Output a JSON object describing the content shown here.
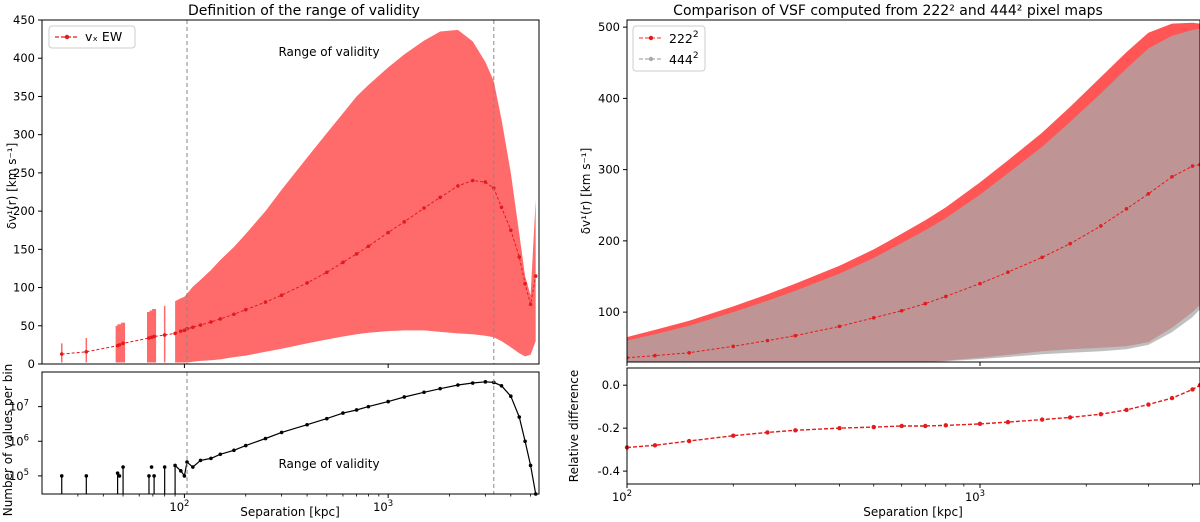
{
  "chart_data": [
    {
      "type": "line",
      "title": "Definition of the range of validity",
      "xscale": "log",
      "xlim": [
        20,
        5500
      ],
      "ylim": [
        0,
        450
      ],
      "yticks": [
        0,
        50,
        100,
        150,
        200,
        250,
        300,
        350,
        400,
        450
      ],
      "xticks": [
        {
          "value": 100,
          "label": "10",
          "exp": "2"
        },
        {
          "value": 1000,
          "label": "10",
          "exp": "3"
        }
      ],
      "xlabel": "",
      "ylabel": "δv¹(r) [km s⁻¹]",
      "validity_bounds": [
        103,
        3300
      ],
      "annotation": "Range of validity",
      "legend": {
        "label": "vₓ EW",
        "location": "upper-left"
      },
      "series": [
        {
          "name": "vₓ EW",
          "x": [
            25,
            33,
            47,
            48,
            50,
            67,
            69,
            71,
            80,
            90,
            96,
            100,
            103,
            110,
            120,
            135,
            150,
            175,
            200,
            250,
            300,
            400,
            500,
            600,
            700,
            800,
            1000,
            1200,
            1500,
            1800,
            2200,
            2600,
            3000,
            3300,
            3600,
            4000,
            4400,
            4700,
            5000,
            5300
          ],
          "y": [
            13,
            16,
            24,
            25,
            27,
            34,
            35,
            36,
            38,
            40,
            43,
            44,
            46,
            48,
            51,
            55,
            59,
            65,
            71,
            81,
            90,
            106,
            120,
            133,
            144,
            154,
            172,
            186,
            204,
            218,
            233,
            240,
            238,
            230,
            205,
            175,
            140,
            105,
            78,
            115
          ],
          "upper": [
            27,
            34,
            50,
            52,
            54,
            68,
            70,
            72,
            76,
            82,
            86,
            88,
            92,
            101,
            110,
            123,
            136,
            153,
            170,
            200,
            228,
            270,
            302,
            328,
            350,
            365,
            388,
            405,
            423,
            435,
            437,
            422,
            395,
            370,
            320,
            250,
            170,
            115,
            90,
            215
          ],
          "lower": [
            2,
            2,
            2,
            2,
            2,
            2,
            2,
            2,
            2,
            2,
            2,
            2,
            2,
            3,
            4,
            5,
            6,
            9,
            11,
            16,
            20,
            27,
            32,
            36,
            39,
            41,
            43,
            44,
            44,
            42,
            40,
            39,
            37,
            35,
            30,
            22,
            14,
            10,
            12,
            30
          ]
        }
      ]
    },
    {
      "type": "line",
      "title": "",
      "xscale": "log",
      "yscale": "log",
      "xlim": [
        20,
        5500
      ],
      "ylim": [
        30000.0,
        100000000.0
      ],
      "yticks": [
        {
          "value": 100000,
          "label": "10",
          "exp": "5"
        },
        {
          "value": 1000000,
          "label": "10",
          "exp": "6"
        },
        {
          "value": 10000000,
          "label": "10",
          "exp": "7"
        }
      ],
      "xticks": [
        {
          "value": 100,
          "label": "10",
          "exp": "2"
        },
        {
          "value": 1000,
          "label": "10",
          "exp": "3"
        }
      ],
      "xlabel": "Separation [kpc]",
      "ylabel": "Number of values per bin",
      "validity_bounds": [
        103,
        3300
      ],
      "annotation": "Range of validity",
      "series": [
        {
          "name": "count",
          "x": [
            25,
            33,
            47,
            48,
            50,
            67,
            69,
            71,
            80,
            90,
            96,
            100,
            103,
            110,
            120,
            135,
            150,
            175,
            200,
            250,
            300,
            400,
            500,
            600,
            700,
            800,
            1000,
            1200,
            1500,
            1800,
            2200,
            2600,
            3000,
            3300,
            3600,
            4000,
            4400,
            4700,
            5000,
            5300
          ],
          "y": [
            100000,
            100000,
            120000,
            100000,
            180000,
            100000,
            180000,
            100000,
            180000,
            200000,
            140000,
            100000,
            250000,
            180000,
            280000,
            320000,
            420000,
            550000,
            750000,
            1200000,
            1800000,
            3000000,
            4500000,
            6500000,
            8000000,
            10000000,
            14000000,
            19000000,
            26000000,
            33000000,
            42000000,
            48000000,
            52000000,
            50000000,
            40000000,
            20000000,
            5000000,
            1000000,
            200000,
            30000
          ],
          "stem_x": [
            25,
            33,
            47,
            50,
            67,
            71,
            80,
            90
          ]
        }
      ]
    },
    {
      "type": "line",
      "title": "Comparison of VSF computed from 222² and 444² pixel maps",
      "xscale": "log",
      "xlim": [
        100,
        4200
      ],
      "ylim": [
        30,
        510
      ],
      "yticks": [
        100,
        200,
        300,
        400,
        500
      ],
      "xticks": [
        {
          "value": 100,
          "label": "10",
          "exp": "2"
        },
        {
          "value": 1000,
          "label": "10",
          "exp": "3"
        }
      ],
      "xlabel": "",
      "ylabel": "δv¹(r) [km s⁻¹]",
      "legend": {
        "entries": [
          {
            "label": "222",
            "exp": "2"
          },
          {
            "label": "444",
            "exp": "2"
          }
        ],
        "location": "upper-left"
      },
      "series": [
        {
          "name": "222²",
          "color": "#ff5555",
          "x": [
            100,
            120,
            150,
            200,
            250,
            300,
            400,
            500,
            600,
            700,
            800,
            1000,
            1200,
            1500,
            1800,
            2200,
            2600,
            3000,
            3500,
            4000,
            4200
          ],
          "y": [
            36,
            39,
            43,
            52,
            60,
            67,
            80,
            92,
            102,
            112,
            122,
            140,
            156,
            177,
            196,
            221,
            245,
            266,
            290,
            305,
            307
          ],
          "upper": [
            65,
            75,
            88,
            108,
            125,
            140,
            165,
            188,
            210,
            229,
            247,
            282,
            313,
            352,
            388,
            430,
            465,
            492,
            505,
            506,
            505
          ],
          "lower": [
            25,
            25,
            25,
            25,
            25,
            25,
            25,
            26,
            28,
            30,
            32,
            36,
            40,
            45,
            48,
            50,
            52,
            58,
            78,
            100,
            110
          ]
        },
        {
          "name": "444²",
          "color": "#aaaaaa",
          "upper": [
            60,
            69,
            81,
            100,
            116,
            130,
            154,
            176,
            197,
            215,
            232,
            265,
            295,
            332,
            367,
            407,
            442,
            470,
            488,
            496,
            498
          ],
          "lower": [
            25,
            25,
            25,
            25,
            25,
            25,
            25,
            26,
            28,
            30,
            31,
            34,
            37,
            41,
            43,
            45,
            48,
            54,
            72,
            93,
            104
          ]
        }
      ]
    },
    {
      "type": "line",
      "title": "",
      "xscale": "log",
      "xlim": [
        100,
        4200
      ],
      "ylim": [
        -0.46,
        0.08
      ],
      "yticks": [
        -0.4,
        -0.2,
        0.0
      ],
      "xticks": [
        {
          "value": 100,
          "label": "10",
          "exp": "2"
        },
        {
          "value": 1000,
          "label": "10",
          "exp": "3"
        }
      ],
      "xlabel": "Separation [kpc]",
      "ylabel": "Relative difference",
      "series": [
        {
          "name": "relative difference",
          "x": [
            100,
            120,
            150,
            200,
            250,
            300,
            400,
            500,
            600,
            700,
            800,
            1000,
            1200,
            1500,
            1800,
            2200,
            2600,
            3000,
            3500,
            4000,
            4200
          ],
          "y": [
            -0.29,
            -0.28,
            -0.26,
            -0.235,
            -0.22,
            -0.21,
            -0.2,
            -0.195,
            -0.19,
            -0.19,
            -0.187,
            -0.18,
            -0.172,
            -0.16,
            -0.15,
            -0.135,
            -0.115,
            -0.09,
            -0.06,
            -0.02,
            0.0
          ]
        }
      ]
    }
  ]
}
